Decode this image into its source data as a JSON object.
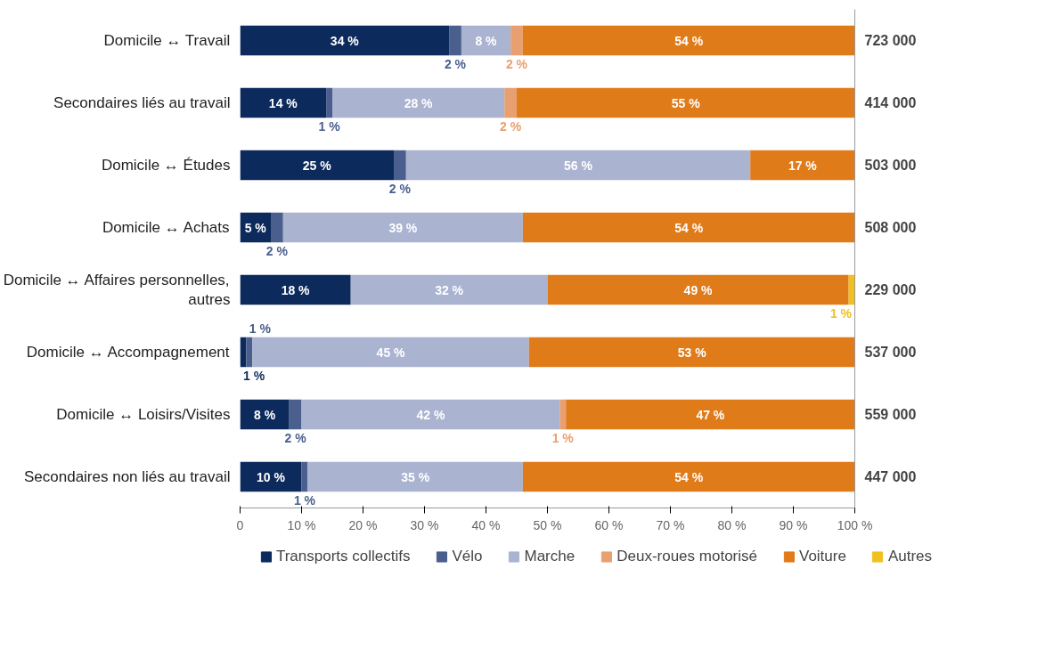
{
  "chart_data": {
    "type": "bar",
    "orientation": "horizontal",
    "stacked": true,
    "categories": [
      "Domicile ↔ Travail",
      "Secondaires liés au travail",
      "Domicile ↔ Études",
      "Domicile ↔ Achats",
      "Domicile ↔ Affaires personnelles,\nautres",
      "Domicile ↔ Accompagnement",
      "Domicile ↔ Loisirs/Visites",
      "Secondaires non liés au travail"
    ],
    "series": [
      {
        "name": "Transports collectifs",
        "color": "#0d2a5c",
        "values": [
          34,
          14,
          25,
          5,
          18,
          1,
          8,
          10
        ],
        "value_labels": [
          "34 %",
          "14 %",
          "25 %",
          "5 %",
          "18 %",
          "1 %",
          "8 %",
          "10 %"
        ]
      },
      {
        "name": "Vélo",
        "color": "#4a5f8e",
        "values": [
          2,
          1,
          2,
          2,
          0,
          1,
          2,
          1
        ],
        "value_labels": [
          "2 %",
          "1 %",
          "2 %",
          "2 %",
          null,
          "1 %",
          "2 %",
          "1 %"
        ]
      },
      {
        "name": "Marche",
        "color": "#aab3d0",
        "values": [
          8,
          28,
          56,
          39,
          32,
          45,
          42,
          35
        ],
        "value_labels": [
          "8 %",
          "28 %",
          "56 %",
          "39 %",
          "32 %",
          "45 %",
          "42 %",
          "35 %"
        ]
      },
      {
        "name": "Deux-roues motorisé",
        "color": "#e8a070",
        "values": [
          2,
          2,
          0,
          0,
          0,
          0,
          1,
          0
        ],
        "value_labels": [
          "2 %",
          "2 %",
          null,
          null,
          null,
          null,
          "1 %",
          null
        ]
      },
      {
        "name": "Voiture",
        "color": "#e07b1a",
        "values": [
          54,
          55,
          17,
          54,
          49,
          53,
          47,
          54
        ],
        "value_labels": [
          "54 %",
          "55 %",
          "17 %",
          "54 %",
          "49 %",
          "53 %",
          "47 %",
          "54 %"
        ]
      },
      {
        "name": "Autres",
        "color": "#f0c020",
        "values": [
          0,
          0,
          0,
          0,
          1,
          0,
          0,
          0
        ],
        "value_labels": [
          null,
          null,
          null,
          null,
          "1 %",
          null,
          null,
          null
        ]
      }
    ],
    "annotations": [
      "723 000",
      "414 000",
      "503 000",
      "508 000",
      "229 000",
      "537 000",
      "559 000",
      "447 000"
    ],
    "xlim": [
      0,
      100
    ],
    "xticks": [
      {
        "value": 0,
        "label": "0"
      },
      {
        "value": 10,
        "label": "10 %"
      },
      {
        "value": 20,
        "label": "20 %"
      },
      {
        "value": 30,
        "label": "30 %"
      },
      {
        "value": 40,
        "label": "40 %"
      },
      {
        "value": 50,
        "label": "50 %"
      },
      {
        "value": 60,
        "label": "60 %"
      },
      {
        "value": 70,
        "label": "70 %"
      },
      {
        "value": 80,
        "label": "80 %"
      },
      {
        "value": 90,
        "label": "90 %"
      },
      {
        "value": 100,
        "label": "100 %"
      }
    ],
    "grid": false,
    "legend": "bottom"
  }
}
